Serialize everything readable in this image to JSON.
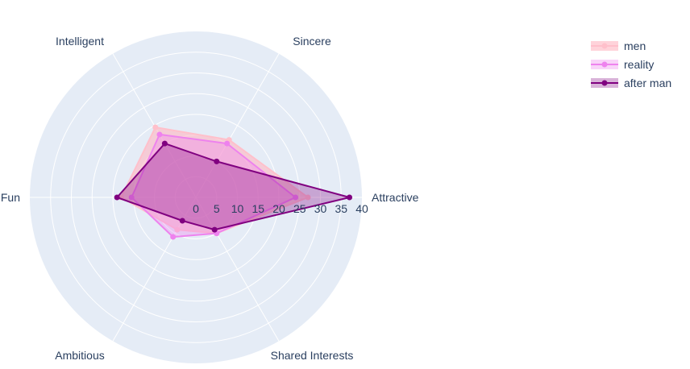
{
  "chart_data": {
    "type": "radar",
    "title": "",
    "axes": [
      "Attractive",
      "Sincere",
      "Intelligent",
      "Fun",
      "Ambitious",
      "Shared Interests"
    ],
    "radial_range": [
      0,
      40
    ],
    "radial_ticks": [
      "0",
      "5",
      "10",
      "15",
      "20",
      "25",
      "30",
      "35",
      "40"
    ],
    "series": [
      {
        "name": "men",
        "values": [
          27,
          16,
          19.5,
          18,
          9,
          10
        ],
        "color": "#ffb6c1",
        "line_color": "#ffc0cb",
        "fill_opacity": 0.6
      },
      {
        "name": "reality",
        "values": [
          24,
          15,
          17.5,
          15.5,
          11,
          10
        ],
        "color": "#ee82ee",
        "line_color": "#ee82ee",
        "fill_opacity": 0.35
      },
      {
        "name": "after man",
        "values": [
          37,
          10,
          15,
          19,
          6.5,
          9
        ],
        "color": "#800080",
        "line_color": "#800080",
        "fill_opacity": 0.3
      }
    ],
    "colors": {
      "polar_bg": "#e5ecf6",
      "grid": "#ffffff",
      "text": "#2a3f5f"
    },
    "legend_position": "top-right"
  }
}
